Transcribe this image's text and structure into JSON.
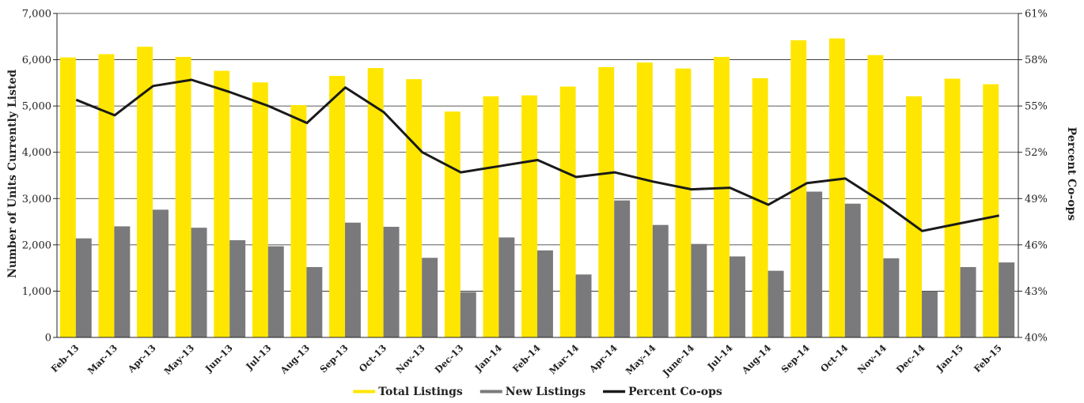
{
  "chart_data": {
    "type": "bar",
    "title": "",
    "categories": [
      "Feb-13",
      "Mar-13",
      "Apr-13",
      "May-13",
      "Jun-13",
      "Jul-13",
      "Aug-13",
      "Sep-13",
      "Oct-13",
      "Nov-13",
      "Dec-13",
      "Jan-14",
      "Feb-14",
      "Mar-14",
      "Apr-14",
      "May-14",
      "June-14",
      "Jul-14",
      "Aug-14",
      "Sep-14",
      "Oct-14",
      "Nov-14",
      "Dec-14",
      "Jan-15",
      "Feb-15"
    ],
    "ylabel": "Number of Units Currently Listed",
    "y2label": "Percent Co-ops",
    "ylim": [
      0,
      7000
    ],
    "y2lim": [
      40,
      61
    ],
    "yticks": [
      "0",
      "1,000",
      "2,000",
      "3,000",
      "4,000",
      "5,000",
      "6,000",
      "7,000"
    ],
    "y2ticks": [
      "40%",
      "43%",
      "46%",
      "49%",
      "52%",
      "55%",
      "58%",
      "61%"
    ],
    "grid": true,
    "legend_position": "bottom",
    "series": [
      {
        "name": "Total Listings",
        "kind": "bar",
        "axis": "left",
        "color": "#FFE600",
        "values": [
          6050,
          6120,
          6280,
          6060,
          5760,
          5510,
          5020,
          5650,
          5820,
          5580,
          4880,
          5210,
          5230,
          5420,
          5840,
          5940,
          5810,
          6060,
          5600,
          6420,
          6460,
          6100,
          5210,
          5590,
          5470
        ]
      },
      {
        "name": "New Listings",
        "kind": "bar",
        "axis": "left",
        "color": "#7A7A7C",
        "values": [
          2140,
          2400,
          2760,
          2370,
          2100,
          1970,
          1520,
          2480,
          2390,
          1720,
          980,
          2160,
          1880,
          1360,
          2960,
          2430,
          2020,
          1750,
          1440,
          3150,
          2890,
          1710,
          1000,
          1520,
          1620
        ]
      },
      {
        "name": "Percent Co-ops",
        "kind": "line",
        "axis": "right",
        "color": "#1A1A1A",
        "values": [
          55.4,
          54.4,
          56.3,
          56.7,
          55.9,
          55.0,
          53.9,
          56.2,
          54.6,
          52.0,
          50.7,
          51.1,
          51.5,
          50.4,
          50.7,
          50.1,
          49.6,
          49.7,
          48.6,
          50.0,
          50.3,
          48.7,
          46.9,
          47.4,
          47.9
        ]
      }
    ]
  }
}
